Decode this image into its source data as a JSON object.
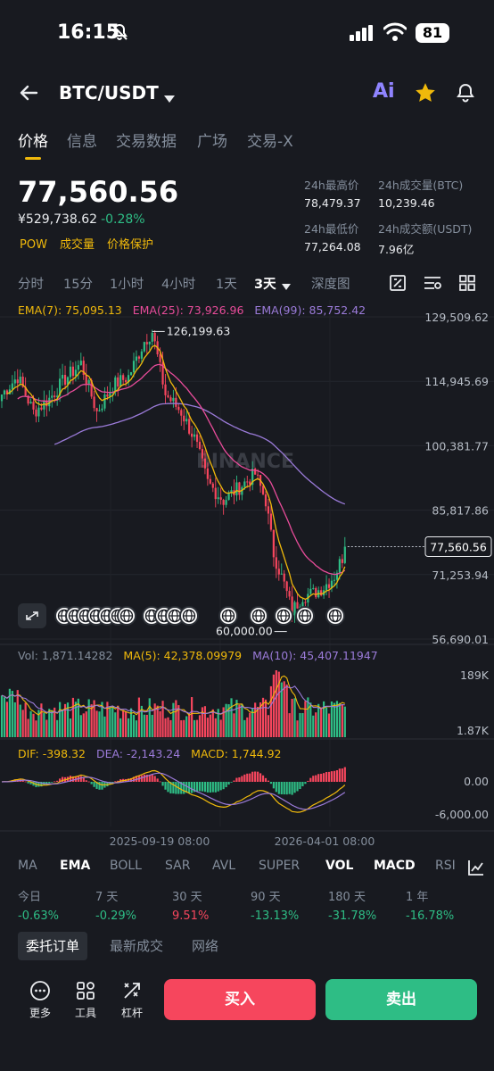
{
  "status_bar": {
    "time": "16:15",
    "battery": "81"
  },
  "header": {
    "pair": "BTC/USDT",
    "ai_label": "Ai"
  },
  "tabs": [
    "价格",
    "信息",
    "交易数据",
    "广场",
    "交易-X"
  ],
  "ticker": {
    "last_price": "77,560.56",
    "fiat_price": "¥529,738.62",
    "change_pct": "-0.28%",
    "tags": [
      "POW",
      "成交量",
      "价格保护"
    ],
    "stats": [
      {
        "label": "24h最高价",
        "value": "78,479.37"
      },
      {
        "label": "24h成交量(BTC)",
        "value": "10,239.46"
      },
      {
        "label": "24h最低价",
        "value": "77,264.08"
      },
      {
        "label": "24h成交额(USDT)",
        "value": "7.96亿"
      }
    ]
  },
  "intervals": [
    "分时",
    "15分",
    "1小时",
    "4小时",
    "1天",
    "3天",
    "深度图"
  ],
  "active_interval": "3天",
  "legends": {
    "ema7": "EMA(7): 75,095.13",
    "ema25": "EMA(25): 73,926.96",
    "ema99": "EMA(99): 85,752.42",
    "vol": "Vol: 1,871.14282",
    "ma5": "MA(5): 42,378.09979",
    "ma10": "MA(10): 45,407.11947",
    "dif": "DIF: -398.32",
    "dea": "DEA: -2,143.24",
    "macd": "MACD: 1,744.92"
  },
  "chart_data": {
    "type": "candlestick",
    "y_axis_labels": [
      "129,509.62",
      "114,945.69",
      "100,381.77",
      "85,817.86",
      "71,253.94",
      "56,690.01"
    ],
    "ylim": [
      56690.01,
      129509.62
    ],
    "last_price_label": "77,560.56",
    "high_marker": "126,199.63",
    "low_marker": "60,000.00",
    "watermark": "BINANCE",
    "vol_axis_labels": [
      "189K",
      "1.87K"
    ],
    "macd_axis_labels": [
      "0.00",
      "-6,000.00"
    ],
    "x_axis_labels": [
      "2025-09-19 08:00",
      "2026-04-01 08:00"
    ],
    "anchors": [
      [
        0,
        112000
      ],
      [
        6,
        116000
      ],
      [
        12,
        108000
      ],
      [
        18,
        111000
      ],
      [
        24,
        115500
      ],
      [
        30,
        119000
      ],
      [
        36,
        108000
      ],
      [
        42,
        114000
      ],
      [
        48,
        116000
      ],
      [
        54,
        124000
      ],
      [
        57,
        126199.63
      ],
      [
        62,
        112000
      ],
      [
        68,
        108000
      ],
      [
        73,
        102000
      ],
      [
        78,
        92000
      ],
      [
        84,
        88000
      ],
      [
        90,
        91000
      ],
      [
        96,
        94000
      ],
      [
        100,
        88000
      ],
      [
        103,
        76000
      ],
      [
        107,
        69000
      ],
      [
        110,
        63000
      ],
      [
        114,
        66500
      ],
      [
        118,
        67000
      ],
      [
        122,
        68500
      ],
      [
        126,
        71000
      ],
      [
        130,
        76500
      ]
    ],
    "colors": {
      "up": "#2ebd85",
      "down": "#f6465d",
      "ema7": "#f0b90b",
      "ema25": "#e84c9a",
      "ema99": "#9b7bd9"
    }
  },
  "indicators": [
    "MA",
    "EMA",
    "BOLL",
    "SAR",
    "AVL",
    "SUPER",
    "VOL",
    "MACD",
    "RSI"
  ],
  "active_indicators": [
    "EMA",
    "VOL",
    "MACD"
  ],
  "periods": [
    {
      "label": "今日",
      "value": "-0.63%",
      "dir": "down"
    },
    {
      "label": "7 天",
      "value": "-0.29%",
      "dir": "down"
    },
    {
      "label": "30 天",
      "value": "9.51%",
      "dir": "up"
    },
    {
      "label": "90 天",
      "value": "-13.13%",
      "dir": "down"
    },
    {
      "label": "180 天",
      "value": "-31.78%",
      "dir": "down"
    },
    {
      "label": "1 年",
      "value": "-16.78%",
      "dir": "down"
    }
  ],
  "bottom_tabs": [
    "委托订单",
    "最新成交",
    "网络"
  ],
  "actions": {
    "more": "更多",
    "tools": "工具",
    "leverage": "杠杆",
    "buy": "买入",
    "sell": "卖出"
  }
}
